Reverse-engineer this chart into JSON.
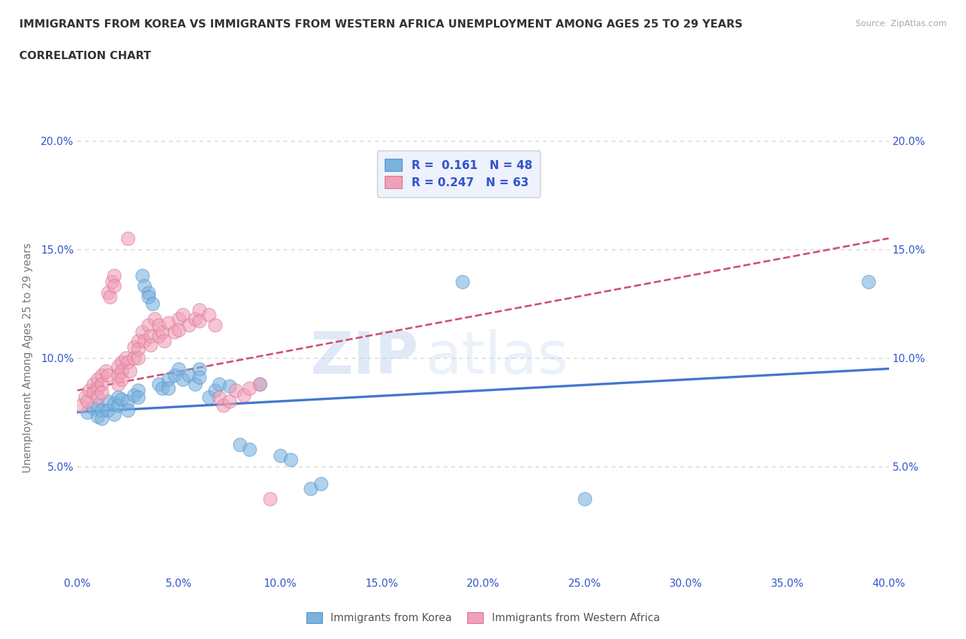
{
  "title_line1": "IMMIGRANTS FROM KOREA VS IMMIGRANTS FROM WESTERN AFRICA UNEMPLOYMENT AMONG AGES 25 TO 29 YEARS",
  "title_line2": "CORRELATION CHART",
  "source": "Source: ZipAtlas.com",
  "ylabel": "Unemployment Among Ages 25 to 29 years",
  "xlim": [
    0.0,
    0.4
  ],
  "ylim": [
    0.0,
    0.2
  ],
  "xticks": [
    0.0,
    0.05,
    0.1,
    0.15,
    0.2,
    0.25,
    0.3,
    0.35,
    0.4
  ],
  "yticks": [
    0.0,
    0.05,
    0.1,
    0.15,
    0.2
  ],
  "korea_color": "#7ab3e0",
  "korea_edge": "#5590c8",
  "wa_color": "#f0a0b8",
  "wa_edge": "#d87090",
  "korea_line_color": "#4477cc",
  "wa_line_color": "#d05070",
  "korea_R": 0.161,
  "korea_N": 48,
  "wa_R": 0.247,
  "wa_N": 63,
  "korea_scatter": [
    [
      0.005,
      0.075
    ],
    [
      0.008,
      0.077
    ],
    [
      0.01,
      0.078
    ],
    [
      0.01,
      0.073
    ],
    [
      0.012,
      0.076
    ],
    [
      0.012,
      0.072
    ],
    [
      0.015,
      0.08
    ],
    [
      0.015,
      0.076
    ],
    [
      0.018,
      0.079
    ],
    [
      0.018,
      0.074
    ],
    [
      0.02,
      0.082
    ],
    [
      0.02,
      0.078
    ],
    [
      0.022,
      0.081
    ],
    [
      0.025,
      0.08
    ],
    [
      0.025,
      0.076
    ],
    [
      0.028,
      0.083
    ],
    [
      0.03,
      0.085
    ],
    [
      0.03,
      0.082
    ],
    [
      0.032,
      0.138
    ],
    [
      0.033,
      0.133
    ],
    [
      0.035,
      0.13
    ],
    [
      0.035,
      0.128
    ],
    [
      0.037,
      0.125
    ],
    [
      0.04,
      0.088
    ],
    [
      0.042,
      0.086
    ],
    [
      0.045,
      0.09
    ],
    [
      0.045,
      0.086
    ],
    [
      0.048,
      0.092
    ],
    [
      0.05,
      0.095
    ],
    [
      0.052,
      0.09
    ],
    [
      0.055,
      0.092
    ],
    [
      0.058,
      0.088
    ],
    [
      0.06,
      0.095
    ],
    [
      0.06,
      0.091
    ],
    [
      0.065,
      0.082
    ],
    [
      0.068,
      0.085
    ],
    [
      0.07,
      0.088
    ],
    [
      0.075,
      0.087
    ],
    [
      0.08,
      0.06
    ],
    [
      0.085,
      0.058
    ],
    [
      0.09,
      0.088
    ],
    [
      0.1,
      0.055
    ],
    [
      0.105,
      0.053
    ],
    [
      0.115,
      0.04
    ],
    [
      0.12,
      0.042
    ],
    [
      0.19,
      0.135
    ],
    [
      0.25,
      0.035
    ],
    [
      0.39,
      0.135
    ]
  ],
  "wa_scatter": [
    [
      0.002,
      0.078
    ],
    [
      0.004,
      0.082
    ],
    [
      0.005,
      0.08
    ],
    [
      0.006,
      0.085
    ],
    [
      0.008,
      0.088
    ],
    [
      0.008,
      0.084
    ],
    [
      0.01,
      0.09
    ],
    [
      0.01,
      0.086
    ],
    [
      0.01,
      0.082
    ],
    [
      0.012,
      0.092
    ],
    [
      0.012,
      0.088
    ],
    [
      0.012,
      0.084
    ],
    [
      0.014,
      0.094
    ],
    [
      0.015,
      0.092
    ],
    [
      0.015,
      0.13
    ],
    [
      0.016,
      0.128
    ],
    [
      0.017,
      0.135
    ],
    [
      0.018,
      0.138
    ],
    [
      0.018,
      0.133
    ],
    [
      0.02,
      0.096
    ],
    [
      0.02,
      0.092
    ],
    [
      0.02,
      0.088
    ],
    [
      0.022,
      0.098
    ],
    [
      0.022,
      0.094
    ],
    [
      0.022,
      0.09
    ],
    [
      0.024,
      0.1
    ],
    [
      0.025,
      0.098
    ],
    [
      0.025,
      0.155
    ],
    [
      0.026,
      0.094
    ],
    [
      0.028,
      0.105
    ],
    [
      0.028,
      0.1
    ],
    [
      0.03,
      0.108
    ],
    [
      0.03,
      0.104
    ],
    [
      0.03,
      0.1
    ],
    [
      0.032,
      0.112
    ],
    [
      0.033,
      0.108
    ],
    [
      0.035,
      0.115
    ],
    [
      0.036,
      0.11
    ],
    [
      0.036,
      0.106
    ],
    [
      0.038,
      0.118
    ],
    [
      0.04,
      0.115
    ],
    [
      0.04,
      0.11
    ],
    [
      0.042,
      0.112
    ],
    [
      0.043,
      0.108
    ],
    [
      0.045,
      0.116
    ],
    [
      0.048,
      0.112
    ],
    [
      0.05,
      0.118
    ],
    [
      0.05,
      0.113
    ],
    [
      0.052,
      0.12
    ],
    [
      0.055,
      0.115
    ],
    [
      0.058,
      0.118
    ],
    [
      0.06,
      0.122
    ],
    [
      0.06,
      0.117
    ],
    [
      0.065,
      0.12
    ],
    [
      0.068,
      0.115
    ],
    [
      0.07,
      0.082
    ],
    [
      0.072,
      0.078
    ],
    [
      0.075,
      0.08
    ],
    [
      0.078,
      0.085
    ],
    [
      0.082,
      0.083
    ],
    [
      0.085,
      0.086
    ],
    [
      0.09,
      0.088
    ],
    [
      0.095,
      0.035
    ]
  ],
  "watermark_zip": "ZIP",
  "watermark_atlas": "atlas",
  "background_color": "#ffffff",
  "grid_color": "#cccccc",
  "title_color": "#333333",
  "tick_color": "#3355cc",
  "legend_box_color": "#eef2fc"
}
